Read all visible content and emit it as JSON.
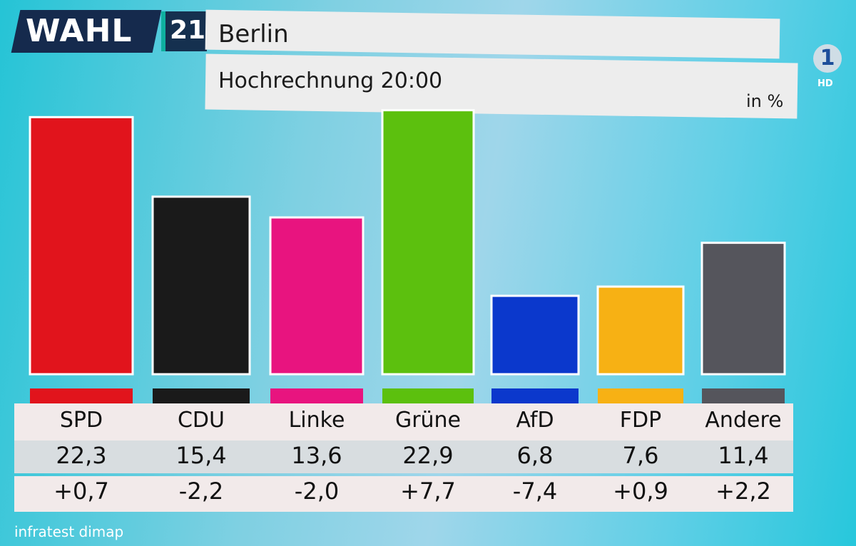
{
  "header": {
    "logo_text": "WAHL",
    "logo_year": "21",
    "title": "Berlin",
    "subtitle": "Hochrechnung 20:00",
    "unit": "in %",
    "channel_logo": "1",
    "channel_hd": "HD"
  },
  "source": "infratest dimap",
  "chart_data": {
    "type": "bar",
    "title": "Berlin",
    "subtitle": "Hochrechnung 20:00",
    "ylabel": "in %",
    "categories": [
      "SPD",
      "CDU",
      "Linke",
      "Grüne",
      "AfD",
      "FDP",
      "Andere"
    ],
    "values": [
      22.3,
      15.4,
      13.6,
      22.9,
      6.8,
      7.6,
      11.4
    ],
    "value_labels": [
      "22,3",
      "15,4",
      "13,6",
      "22,9",
      "6,8",
      "7,6",
      "11,4"
    ],
    "changes": [
      "+0,7",
      "-2,2",
      "-2,0",
      "+7,7",
      "-7,4",
      "+0,9",
      "+2,2"
    ],
    "colors": [
      "#e1141c",
      "#1a1a1a",
      "#e8147f",
      "#5cc00e",
      "#0b38cc",
      "#f7b114",
      "#55555c"
    ],
    "ylim": [
      0,
      23
    ],
    "grid": false,
    "legend": "none"
  }
}
